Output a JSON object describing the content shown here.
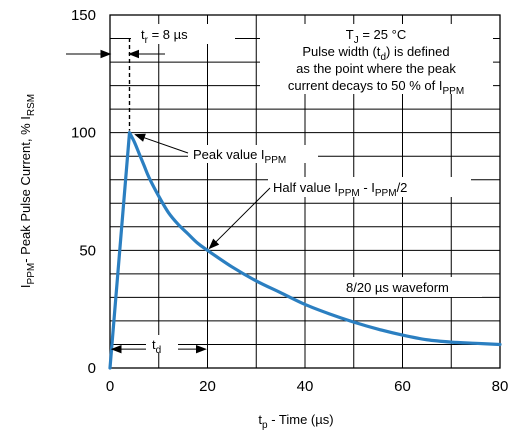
{
  "chart_data": {
    "type": "line",
    "title": "",
    "x": [
      0,
      4,
      5,
      6,
      7,
      8,
      10,
      12,
      14,
      16,
      18,
      20,
      25,
      30,
      35,
      40,
      45,
      50,
      55,
      60,
      65,
      70,
      75,
      80
    ],
    "series": [
      {
        "values": [
          0,
          100,
          96,
          91,
          86,
          81,
          73,
          66,
          61,
          57,
          53,
          50,
          43,
          37,
          32,
          27,
          23,
          19.5,
          16.5,
          14,
          12,
          11,
          10.5,
          10
        ],
        "color": "#2b7fc1"
      }
    ],
    "xlim": [
      0,
      80
    ],
    "ylim": [
      0,
      150
    ],
    "x_ticks": [
      "0",
      "20",
      "40",
      "60",
      "80"
    ],
    "y_ticks": [
      "0",
      "50",
      "100",
      "150"
    ],
    "grid": true,
    "xlabel_parts": {
      "t": "t",
      "sub": "p",
      "rest": " - Time (µs)"
    },
    "ylabel_parts": {
      "a": "I",
      "a_sub": "PPM",
      "b": "- Peak Pulse Current, % I",
      "b_sub": "RSM"
    },
    "annotations": {
      "tr": {
        "pre": "t",
        "sub": "r",
        "post": " = 8 µs"
      },
      "tj": {
        "pre": "T",
        "sub": "J",
        "post": " = 25 °C"
      },
      "pw1": {
        "pre": "Pulse width (t",
        "sub": "d",
        "post": ") is defined"
      },
      "pw2": {
        "text": "as the point where the peak"
      },
      "pw3": {
        "pre": "current decays to 50 % of I",
        "sub": "PPM",
        "post": ""
      },
      "peak": {
        "pre": "Peak value I",
        "sub": "PPM",
        "post": ""
      },
      "half": {
        "pre": "Half value I",
        "sub1": "PPM",
        "mid": " - I",
        "sub2": "PPM",
        "post": "/2"
      },
      "waveform": {
        "text": "8/20 µs waveform"
      },
      "td": {
        "pre": "t",
        "sub": "d",
        "post": ""
      }
    }
  }
}
